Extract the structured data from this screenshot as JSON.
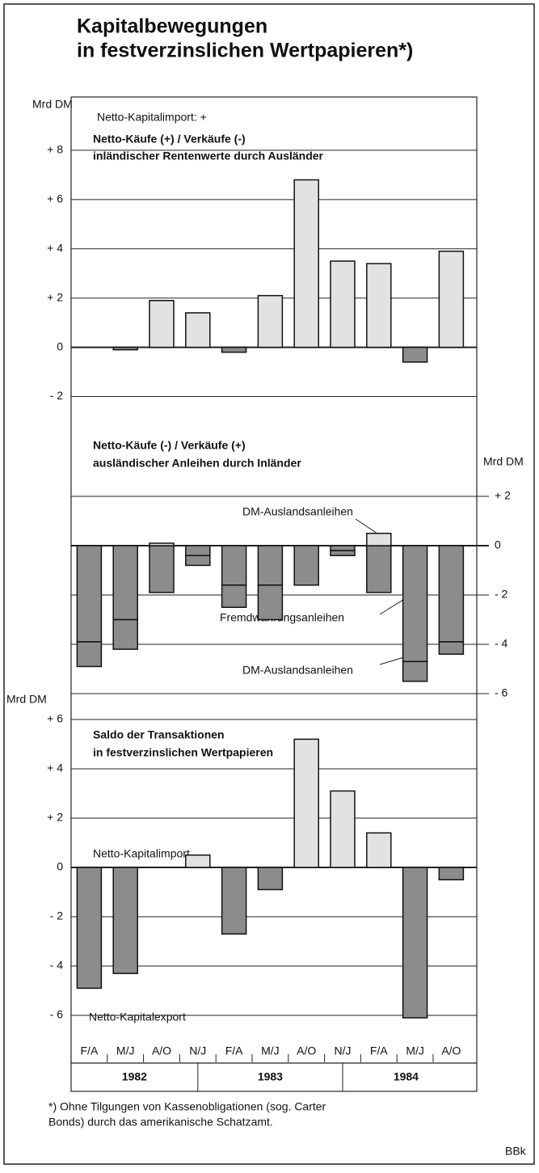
{
  "title": [
    "Kapitalbewegungen",
    "in festverzinslichen Wertpapieren*)"
  ],
  "chart_data": [
    {
      "type": "bar",
      "unit": "Mrd DM",
      "axis_side": "left",
      "annotations": [
        "Netto-Kapitalimport: +"
      ],
      "subtitle": [
        "Netto-Käufe (+) / Verkäufe (-)",
        "inländischer Rentenwerte durch Ausländer"
      ],
      "values": [
        0,
        -0.1,
        1.9,
        1.4,
        -0.2,
        2.1,
        6.8,
        3.5,
        3.4,
        -0.6,
        3.9
      ],
      "color_positive": "#e2e2e2",
      "color_negative": "#8c8c8c",
      "ylim": [
        -3,
        10
      ],
      "yticks": [
        {
          "value": -2,
          "label": "- 2"
        },
        0,
        {
          "value": 2,
          "label": "+ 2"
        },
        {
          "value": 4,
          "label": "+ 4"
        },
        {
          "value": 6,
          "label": "+ 6"
        },
        {
          "value": 8,
          "label": "+ 8"
        }
      ],
      "grid": true
    },
    {
      "type": "stacked_bar",
      "unit": "Mrd DM",
      "axis_side": "right",
      "subtitle": [
        "Netto-Käufe (-) / Verkäufe (+)",
        "ausländischer Anleihen durch Inländer"
      ],
      "series": [
        {
          "name": "Fremdwährungsanleihen",
          "values": [
            -3.9,
            -3.0,
            -1.9,
            -0.4,
            -1.6,
            -1.6,
            -1.6,
            -0.2,
            -1.9,
            -4.7,
            -3.9
          ]
        },
        {
          "name": "DM-Auslandsanleihen",
          "values": [
            -1.0,
            -1.2,
            0.1,
            -0.4,
            -0.9,
            -1.4,
            0,
            -0.2,
            0.5,
            -0.8,
            -0.5
          ]
        }
      ],
      "color_positive": "#e2e2e2",
      "color_negative": "#8c8c8c",
      "ylim": [
        -6,
        3
      ],
      "yticks": [
        {
          "value": -6,
          "label": "- 6"
        },
        {
          "value": -4,
          "label": "- 4"
        },
        {
          "value": -2,
          "label": "- 2"
        },
        0,
        {
          "value": 2,
          "label": "+ 2"
        }
      ],
      "grid": true
    },
    {
      "type": "bar",
      "unit": "Mrd DM",
      "axis_side": "left",
      "subtitle": [
        "Saldo der Transaktionen",
        "in festverzinslichen Wertpapieren"
      ],
      "annotations": [
        "Netto-Kapitalimport",
        "Netto-Kapitalexport"
      ],
      "categories": [
        "F/A",
        "M/J",
        "A/O",
        "N/J",
        "F/A",
        "M/J",
        "A/O",
        "N/J",
        "F/A",
        "M/J",
        "A/O"
      ],
      "years": [
        "1982",
        "1983",
        "1984"
      ],
      "values": [
        -4.9,
        -4.3,
        0,
        0.5,
        -2.7,
        -0.9,
        5.2,
        3.1,
        1.4,
        -6.1,
        -0.5
      ],
      "color_positive": "#e2e2e2",
      "color_negative": "#8c8c8c",
      "ylim": [
        -7,
        7
      ],
      "yticks": [
        {
          "value": -6,
          "label": "- 6"
        },
        {
          "value": -4,
          "label": "- 4"
        },
        {
          "value": -2,
          "label": "- 2"
        },
        0,
        {
          "value": 2,
          "label": "+ 2"
        },
        {
          "value": 4,
          "label": "+ 4"
        },
        {
          "value": 6,
          "label": "+ 6"
        }
      ],
      "grid": true
    }
  ],
  "footnote": [
    "*) Ohne Tilgungen von Kassenobligationen (sog. Carter",
    "Bonds) durch das amerikanische Schatzamt."
  ],
  "source": "BBk"
}
